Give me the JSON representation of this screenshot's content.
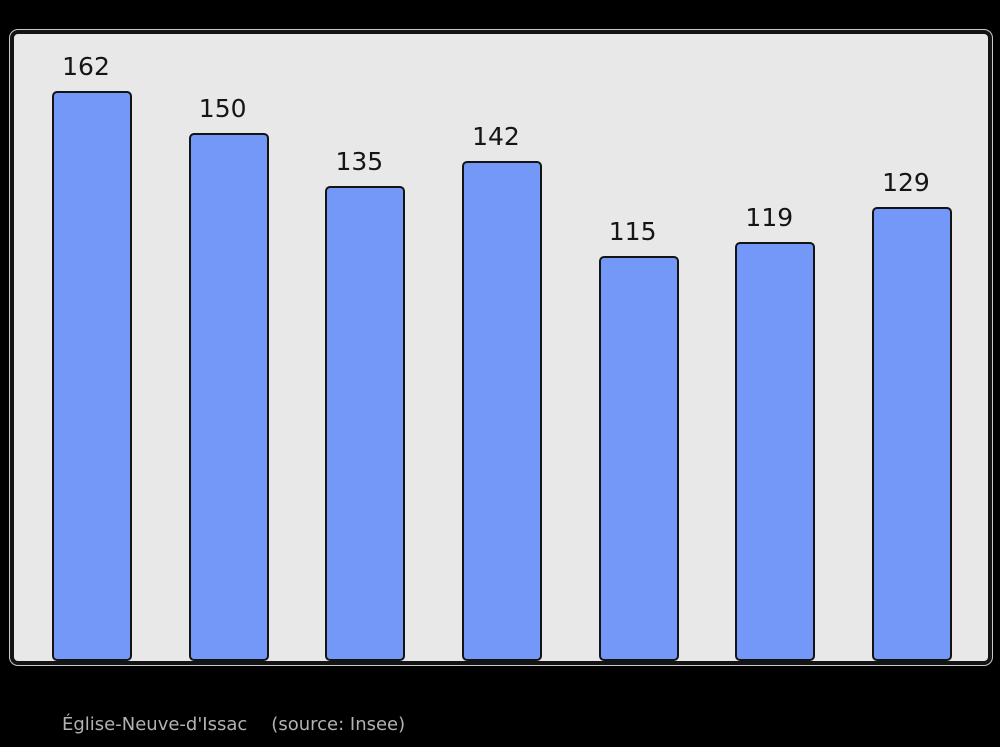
{
  "chart_data": {
    "type": "bar",
    "title": "Église-Neuve-d'Issac",
    "source": "(source: Insee)",
    "values": [
      162,
      150,
      135,
      142,
      115,
      119,
      129
    ],
    "bar_labels": [
      "162",
      "150",
      "135",
      "142",
      "115",
      "119",
      "129"
    ],
    "categories": [],
    "xlabel": "",
    "ylabel": "",
    "ylim": [
      0,
      178
    ],
    "grid": false,
    "legend": "none",
    "colors": {
      "page_background": "#000000",
      "panel_background": "#e8e8e8",
      "panel_border": "#141414",
      "bar_fill": "#7398f8",
      "bar_border": "#141414",
      "value_label": "#151515",
      "caption_text": "#b2b2b2"
    }
  },
  "caption": {
    "title": "Église-Neuve-d'Issac",
    "source": "(source: Insee)"
  }
}
